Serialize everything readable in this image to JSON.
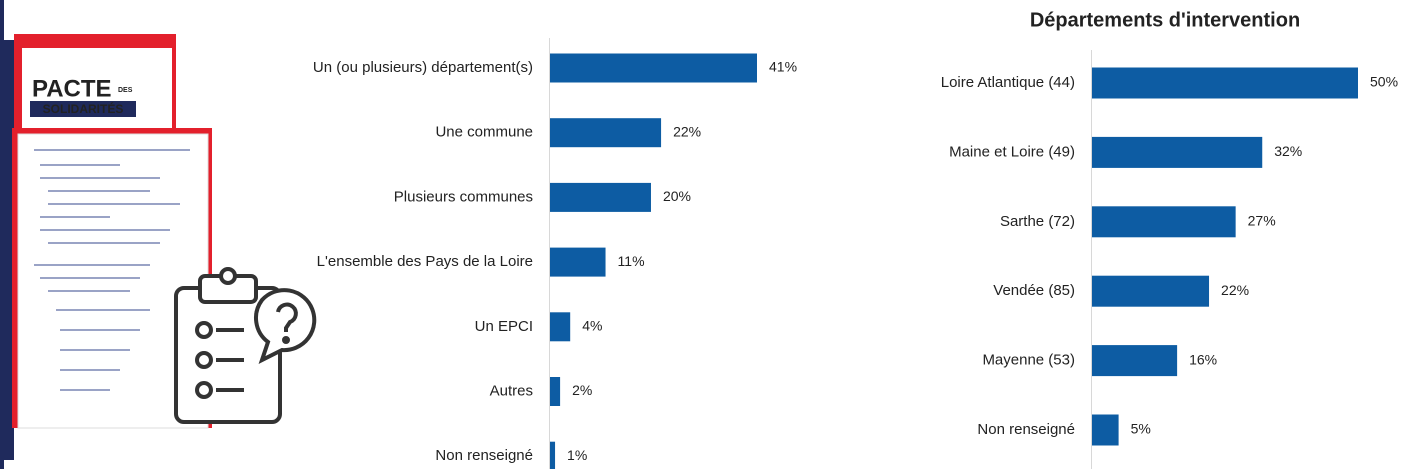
{
  "decor": {
    "logo": "PACTE",
    "logo_des": "DES",
    "logo_sub": "SOLIDARITÉS"
  },
  "chart_data": [
    {
      "type": "bar",
      "orientation": "horizontal",
      "color": "#0d5ca3",
      "categories": [
        "Un (ou plusieurs) département(s)",
        "Une commune",
        "Plusieurs communes",
        "L'ensemble des Pays de la Loire",
        "Un EPCI",
        "Autres",
        "Non renseigné"
      ],
      "values": [
        41,
        22,
        20,
        11,
        4,
        2,
        1
      ],
      "value_labels": [
        "41%",
        "22%",
        "20%",
        "11%",
        "4%",
        "2%",
        "1%"
      ]
    },
    {
      "type": "bar",
      "orientation": "horizontal",
      "color": "#0d5ca3",
      "title": "Départements d'intervention",
      "categories": [
        "Loire Atlantique (44)",
        "Maine et Loire (49)",
        "Sarthe (72)",
        "Vendée (85)",
        "Mayenne (53)",
        "Non renseigné"
      ],
      "values": [
        50,
        32,
        27,
        22,
        16,
        5
      ],
      "value_labels": [
        "50%",
        "32%",
        "27%",
        "22%",
        "16%",
        "5%"
      ]
    }
  ]
}
